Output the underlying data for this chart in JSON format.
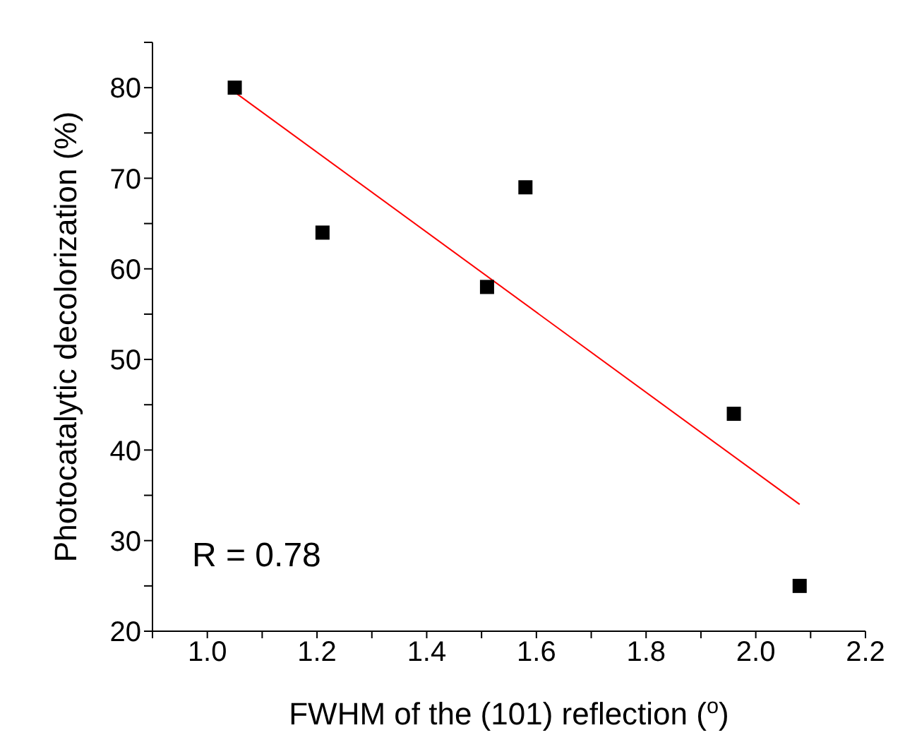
{
  "chart_data": {
    "type": "scatter",
    "xlabel": "FWHM of the (101) reflection ($^{o}$)",
    "ylabel": "Photocatalytic decolorization (%)",
    "x": [
      1.05,
      1.21,
      1.51,
      1.58,
      1.96,
      2.08
    ],
    "series": [
      {
        "color": "#000000",
        "marker": "square",
        "values": [
          80,
          64,
          58,
          69,
          44,
          25
        ]
      },
      {
        "type": "line",
        "color": "#ff0000",
        "x": [
          1.05,
          2.08
        ],
        "values": [
          79.5,
          34
        ]
      }
    ],
    "xlim": [
      0.9,
      2.2
    ],
    "xticks": [
      {
        "value": 0.9,
        "label": null
      },
      {
        "value": 1.0,
        "label": "1.0"
      },
      {
        "value": 1.1,
        "label": null
      },
      1.2,
      {
        "value": 1.3,
        "label": null
      },
      1.4,
      {
        "value": 1.5,
        "label": null
      },
      1.6,
      {
        "value": 1.7,
        "label": null
      },
      1.8,
      {
        "value": 1.9,
        "label": null
      },
      {
        "value": 2.0,
        "label": "2.0"
      },
      {
        "value": 2.1,
        "label": null
      },
      2.2
    ],
    "ylim": [
      20,
      85
    ],
    "yticks": [
      20,
      {
        "value": 25,
        "label": null
      },
      30,
      {
        "value": 35,
        "label": null
      },
      40,
      {
        "value": 45,
        "label": null
      },
      50,
      {
        "value": 55,
        "label": null
      },
      60,
      {
        "value": 65,
        "label": null
      },
      70,
      {
        "value": 75,
        "label": null
      },
      80,
      {
        "value": 85,
        "label": null
      }
    ],
    "annotations": [
      "R = 0.78"
    ],
    "grid": false,
    "legend": false
  }
}
